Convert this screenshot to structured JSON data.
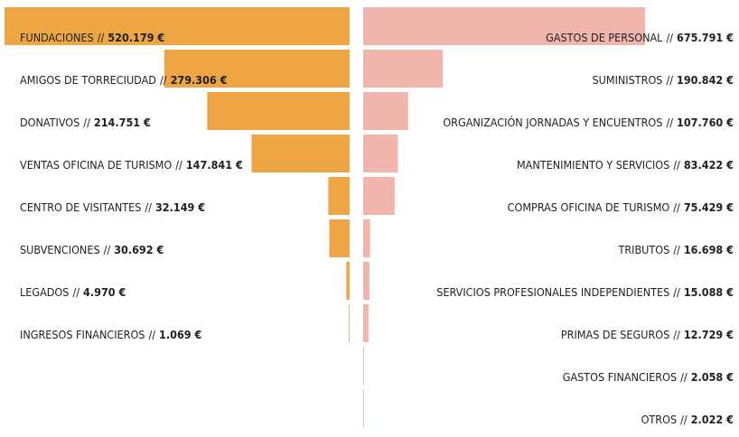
{
  "chart_data": [
    {
      "type": "bar",
      "orientation": "horizontal",
      "direction": "left",
      "color": "#eda643",
      "separator": "//",
      "categories": [
        "FUNDACIONES",
        "AMIGOS DE TORRECIUDAD",
        "DONATIVOS",
        "VENTAS OFICINA DE TURISMO",
        "CENTRO DE VISITANTES",
        "SUBVENCIONES",
        "LEGADOS",
        "INGRESOS FINANCIEROS"
      ],
      "values": [
        520179,
        279306,
        214751,
        147841,
        32149,
        30692,
        4970,
        1069
      ],
      "value_labels": [
        "520.179 €",
        "279.306 €",
        "214.751 €",
        "147.841 €",
        "32.149 €",
        "30.692 €",
        "4.970 €",
        "1.069 €"
      ],
      "xlim": [
        0,
        527000
      ]
    },
    {
      "type": "bar",
      "orientation": "horizontal",
      "direction": "right",
      "color": "#f0b5ad",
      "separator": "//",
      "categories": [
        "GASTOS DE PERSONAL",
        "SUMINISTROS",
        "ORGANIZACIÓN JORNADAS Y ENCUENTROS",
        "MANTENIMIENTO Y SERVICIOS",
        "COMPRAS OFICINA DE TURISMO",
        "TRIBUTOS",
        "SERVICIOS PROFESIONALES INDEPENDIENTES",
        "PRIMAS DE SEGUROS",
        "GASTOS FINANCIEROS",
        "OTROS"
      ],
      "values": [
        675791,
        190842,
        107760,
        83422,
        75429,
        16698,
        15088,
        12729,
        2058,
        2022
      ],
      "value_labels": [
        "675.791 €",
        "190.842 €",
        "107.760 €",
        "83.422 €",
        "75.429 €",
        "16.698 €",
        "15.088 €",
        "12.729 €",
        "2.058 €",
        "2.022 €"
      ],
      "xlim": [
        0,
        901000
      ]
    }
  ]
}
